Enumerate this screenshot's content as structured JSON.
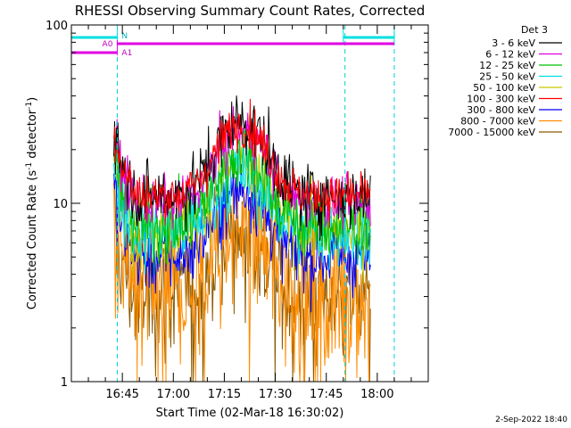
{
  "chart_data": {
    "type": "line",
    "title": "RHESSI Observing Summary Count Rates, Corrected",
    "xlabel": "Start Time (02-Mar-18 16:30:02)",
    "ylabel_main": "Corrected Count Rate (s",
    "ylabel_sup1": "-1",
    "ylabel_mid": " detector",
    "ylabel_sup2": "-1",
    "ylabel_end": ")",
    "yscale": "log",
    "ylim": [
      1,
      100
    ],
    "y_ticks": [
      {
        "value": 1,
        "label": "1"
      },
      {
        "value": 10,
        "label": "10"
      },
      {
        "value": 100,
        "label": "100"
      }
    ],
    "x_unit": "minutes since 16:30:02",
    "xlim": [
      0,
      105
    ],
    "x_ticks": [
      {
        "value": 15,
        "label": "16:45"
      },
      {
        "value": 30,
        "label": "17:00"
      },
      {
        "value": 45,
        "label": "17:15"
      },
      {
        "value": 60,
        "label": "17:30"
      },
      {
        "value": 75,
        "label": "17:45"
      },
      {
        "value": 90,
        "label": "18:00"
      }
    ],
    "data_range": [
      12.5,
      88
    ],
    "peak_time": 50,
    "legend_title": "Det 3",
    "series": [
      {
        "name": "3 - 6 keV",
        "color": "#000000",
        "base": 11,
        "peak": 29,
        "noise": 0.13
      },
      {
        "name": "6 - 12 keV",
        "color": "#e000e0",
        "base": 10,
        "peak": 26,
        "noise": 0.1
      },
      {
        "name": "12 - 25 keV",
        "color": "#00c000",
        "base": 7.5,
        "peak": 19,
        "noise": 0.15
      },
      {
        "name": "25 - 50 keV",
        "color": "#00e0e0",
        "base": 7,
        "peak": 15,
        "noise": 0.15
      },
      {
        "name": "50 - 100 keV",
        "color": "#c8c800",
        "base": 7,
        "peak": 17,
        "noise": 0.14
      },
      {
        "name": "100 - 300 keV",
        "color": "#ff0000",
        "base": 11,
        "peak": 28,
        "noise": 0.09
      },
      {
        "name": "300 - 800 keV",
        "color": "#0000ff",
        "base": 5,
        "peak": 12,
        "noise": 0.14
      },
      {
        "name": "800 - 7000 keV",
        "color": "#ff8c00",
        "base": 3,
        "peak": 7,
        "noise": 0.3
      },
      {
        "name": "7000 - 15000 keV",
        "color": "#8b5a00",
        "base": 3,
        "peak": 7,
        "noise": 0.25
      }
    ],
    "annotations": {
      "n_label": "N",
      "a0_label": "A0",
      "a1_label": "A1",
      "night_segments": [
        [
          0,
          13.5
        ],
        [
          80,
          95
        ]
      ],
      "a0_segment": [
        13.5,
        95
      ],
      "a1_segment": [
        0,
        13.5
      ],
      "dashed_times": [
        13.5,
        80.5,
        95
      ]
    },
    "timestamp": "2-Sep-2022 18:40"
  }
}
